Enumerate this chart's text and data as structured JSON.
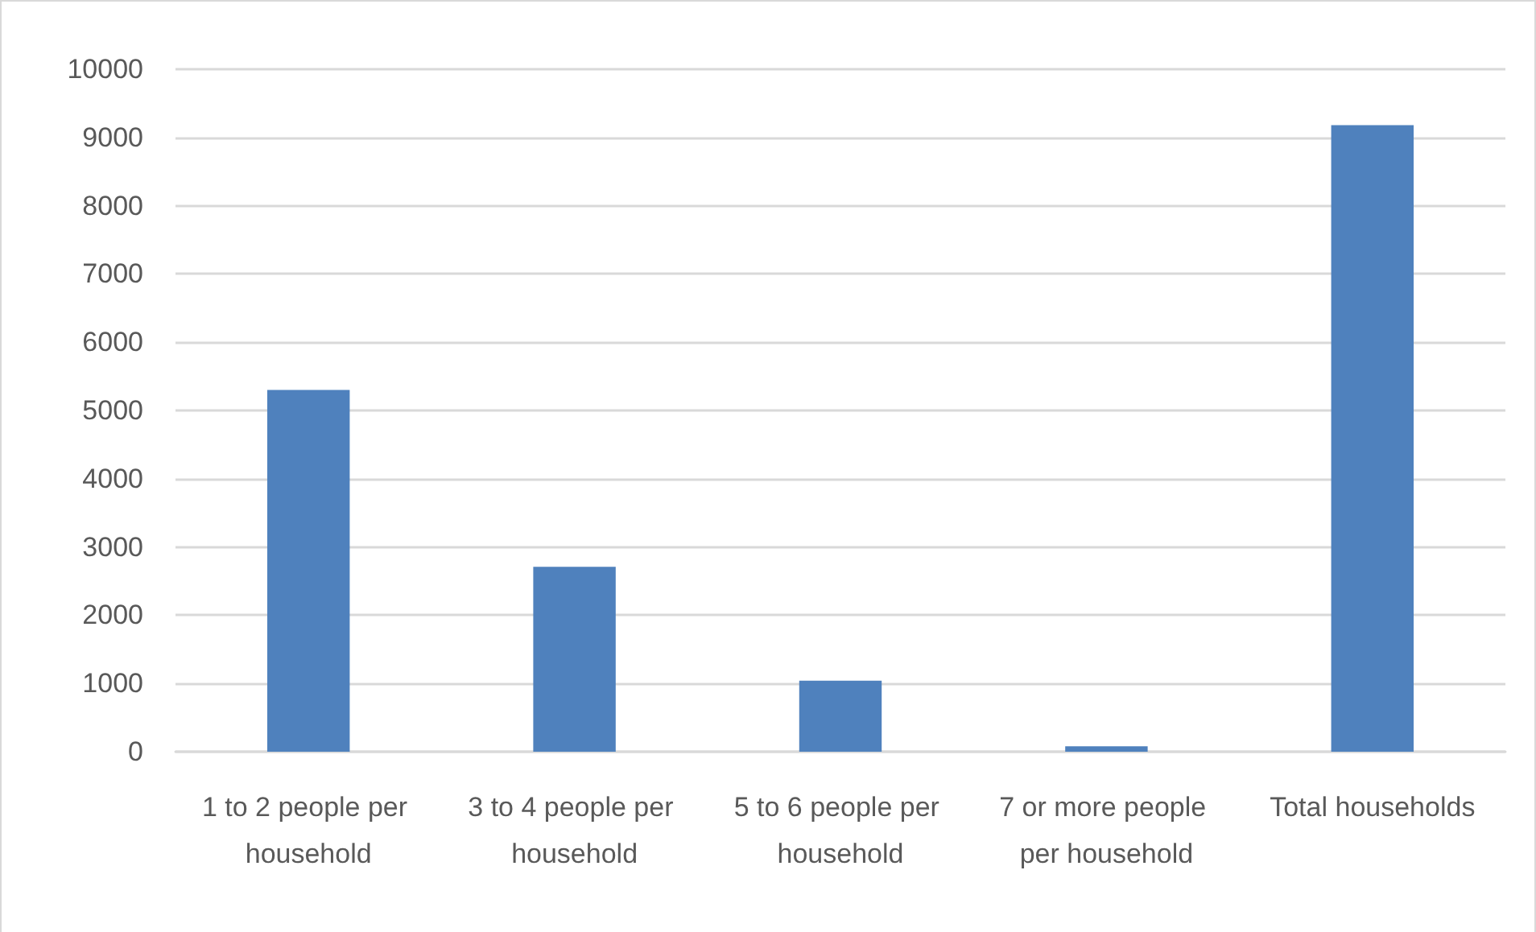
{
  "chart_data": {
    "type": "bar",
    "categories": [
      "1 to 2 people per household",
      "3 to 4 people per household",
      "5 to 6 people per household",
      "7 or more people per household",
      "Total households"
    ],
    "values": [
      5300,
      2710,
      1040,
      80,
      9180
    ],
    "color": "#4f81bd",
    "ylim": [
      0,
      10000
    ],
    "yticks": [
      0,
      1000,
      2000,
      3000,
      4000,
      5000,
      6000,
      7000,
      8000,
      9000,
      10000
    ],
    "grid": "y"
  }
}
